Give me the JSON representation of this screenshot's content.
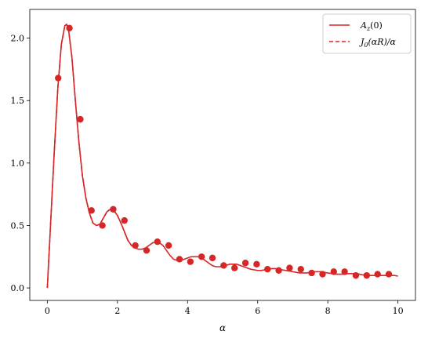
{
  "chart_data": {
    "type": "line",
    "xlabel": "α",
    "ylabel": "",
    "title": "",
    "xlim": [
      -0.5,
      10.5
    ],
    "ylim": [
      -0.1,
      2.23
    ],
    "xticks": [
      0,
      2,
      4,
      6,
      8,
      10
    ],
    "xtick_labels": [
      "0",
      "2",
      "4",
      "6",
      "8",
      "10"
    ],
    "yticks": [
      0.0,
      0.5,
      1.0,
      1.5,
      2.0
    ],
    "ytick_labels": [
      "0.0",
      "0.5",
      "1.0",
      "1.5",
      "2.0"
    ],
    "grid": false,
    "legend_position": "top-right",
    "series": [
      {
        "name": "A_z(0)",
        "style": "solid",
        "color": "#d62728",
        "x": [
          0.0,
          0.1,
          0.2,
          0.3,
          0.4,
          0.5,
          0.55,
          0.6,
          0.7,
          0.8,
          0.9,
          1.0,
          1.1,
          1.2,
          1.3,
          1.4,
          1.5,
          1.6,
          1.7,
          1.8,
          1.9,
          2.0,
          2.1,
          2.2,
          2.3,
          2.4,
          2.5,
          2.6,
          2.7,
          2.8,
          2.9,
          3.0,
          3.1,
          3.2,
          3.3,
          3.4,
          3.5,
          3.6,
          3.7,
          3.8,
          3.9,
          4.0,
          4.1,
          4.2,
          4.3,
          4.4,
          4.5,
          4.6,
          4.7,
          4.8,
          4.9,
          5.0,
          5.1,
          5.2,
          5.3,
          5.4,
          5.5,
          5.6,
          5.7,
          5.8,
          5.9,
          6.0,
          6.1,
          6.2,
          6.3,
          6.4,
          6.5,
          6.6,
          6.7,
          6.8,
          6.9,
          7.0,
          7.1,
          7.2,
          7.3,
          7.4,
          7.5,
          7.6,
          7.7,
          7.8,
          7.9,
          8.0,
          8.1,
          8.2,
          8.3,
          8.4,
          8.5,
          8.6,
          8.7,
          8.8,
          8.9,
          9.0,
          9.1,
          9.2,
          9.3,
          9.4,
          9.5,
          9.6,
          9.7,
          9.8,
          9.9,
          10.0
        ],
        "y": [
          0.0,
          0.55,
          1.1,
          1.6,
          1.95,
          2.1,
          2.11,
          2.08,
          1.85,
          1.5,
          1.17,
          0.9,
          0.72,
          0.6,
          0.52,
          0.5,
          0.51,
          0.56,
          0.61,
          0.63,
          0.62,
          0.58,
          0.52,
          0.45,
          0.38,
          0.34,
          0.32,
          0.31,
          0.31,
          0.32,
          0.34,
          0.36,
          0.37,
          0.36,
          0.34,
          0.3,
          0.26,
          0.23,
          0.22,
          0.22,
          0.23,
          0.24,
          0.25,
          0.25,
          0.25,
          0.24,
          0.22,
          0.2,
          0.18,
          0.17,
          0.17,
          0.17,
          0.18,
          0.19,
          0.19,
          0.19,
          0.18,
          0.17,
          0.16,
          0.15,
          0.145,
          0.14,
          0.14,
          0.145,
          0.15,
          0.155,
          0.155,
          0.15,
          0.145,
          0.14,
          0.135,
          0.13,
          0.125,
          0.12,
          0.12,
          0.12,
          0.125,
          0.13,
          0.13,
          0.13,
          0.125,
          0.12,
          0.115,
          0.11,
          0.11,
          0.11,
          0.11,
          0.115,
          0.115,
          0.115,
          0.11,
          0.105,
          0.1,
          0.1,
          0.1,
          0.1,
          0.1,
          0.1,
          0.1,
          0.1,
          0.1,
          0.095
        ]
      },
      {
        "name": "J_0(αR)/α",
        "style": "dashed",
        "color": "#d62728",
        "x": [
          0.0,
          0.1,
          0.2,
          0.3,
          0.4,
          0.5,
          0.55,
          0.6,
          0.7,
          0.8,
          0.9,
          1.0,
          1.1,
          1.2,
          1.3,
          1.4,
          1.5,
          1.6,
          1.7,
          1.8,
          1.9,
          2.0,
          2.1,
          2.2,
          2.3,
          2.4,
          2.5
        ],
        "y": [
          0.0,
          0.55,
          1.1,
          1.6,
          1.95,
          2.1,
          2.11,
          2.08,
          1.85,
          1.5,
          1.17,
          0.9,
          0.72,
          0.6,
          0.52,
          0.5,
          0.51,
          0.56,
          0.61,
          0.63,
          0.62,
          0.58,
          0.52,
          0.45,
          0.38,
          0.34,
          0.32
        ]
      }
    ],
    "points": {
      "color": "#d62728",
      "x": [
        0.31,
        0.63,
        0.94,
        1.26,
        1.57,
        1.88,
        2.2,
        2.51,
        2.83,
        3.14,
        3.46,
        3.77,
        4.08,
        4.4,
        4.71,
        5.03,
        5.34,
        5.65,
        5.97,
        6.28,
        6.6,
        6.91,
        7.23,
        7.54,
        7.85,
        8.17,
        8.48,
        8.8,
        9.11,
        9.42,
        9.74
      ],
      "y": [
        1.68,
        2.08,
        1.35,
        0.62,
        0.5,
        0.63,
        0.54,
        0.34,
        0.3,
        0.37,
        0.34,
        0.23,
        0.21,
        0.25,
        0.24,
        0.18,
        0.16,
        0.2,
        0.19,
        0.15,
        0.14,
        0.16,
        0.15,
        0.12,
        0.11,
        0.13,
        0.13,
        0.1,
        0.1,
        0.11,
        0.11
      ]
    },
    "legend": [
      {
        "label": "A_z(0)",
        "style": "solid"
      },
      {
        "label": "J_0(αR)/α",
        "style": "dashed"
      }
    ]
  },
  "legend_text": {
    "first_main": "A",
    "first_sub": "z",
    "first_tail": "(0)",
    "second_main": "J",
    "second_sub": "0",
    "second_tail": "(αR)/α"
  },
  "xlabel_text": "α"
}
